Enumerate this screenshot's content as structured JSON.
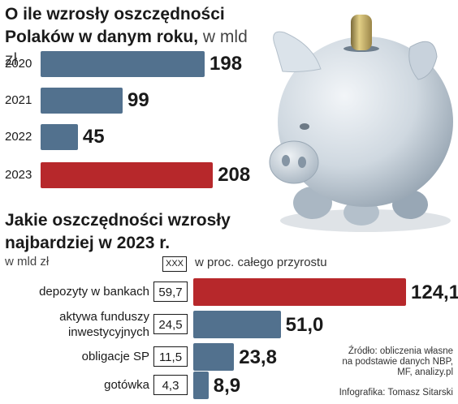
{
  "chart_data": [
    {
      "type": "bar",
      "orientation": "horizontal",
      "title_bold": "O ile wzrosły oszczędności Polaków w danym roku,",
      "title_unit": "w mld zł",
      "categories": [
        "2020",
        "2021",
        "2022",
        "2023"
      ],
      "values": [
        198,
        99,
        45,
        208
      ],
      "value_labels": [
        "198",
        "99",
        "45",
        "208"
      ],
      "colors": [
        "#52718e",
        "#52718e",
        "#52718e",
        "#b7282b"
      ]
    },
    {
      "type": "bar",
      "orientation": "horizontal",
      "title": "Jakie oszczędności wzrosły najbardziej w 2023 r.",
      "unit": "w mld zł",
      "legend": {
        "box": "XXX",
        "text": "w proc. całego przyrostu"
      },
      "categories": [
        "depozyty w bankach",
        "aktywa funduszy inwestycyjnych",
        "obligacje SP",
        "gotówka"
      ],
      "category_lines": [
        [
          "depozyty w bankach"
        ],
        [
          "aktywa funduszy",
          "inwestycyjnych"
        ],
        [
          "obligacje SP"
        ],
        [
          "gotówka"
        ]
      ],
      "values": [
        124.1,
        51.0,
        23.8,
        8.9
      ],
      "value_labels": [
        "124,1",
        "51,0",
        "23,8",
        "8,9"
      ],
      "percent_of_total": [
        "59,7",
        "24,5",
        "11,5",
        "4,3"
      ],
      "colors": [
        "#b7282b",
        "#52718e",
        "#52718e",
        "#52718e"
      ]
    }
  ],
  "source": [
    "Źródło: obliczenia własne",
    "na podstawie danych NBP,",
    "MF, analizy.pl"
  ],
  "credit": "Infografika: Tomasz Sitarski",
  "illustration": "piggy-bank-with-coin"
}
